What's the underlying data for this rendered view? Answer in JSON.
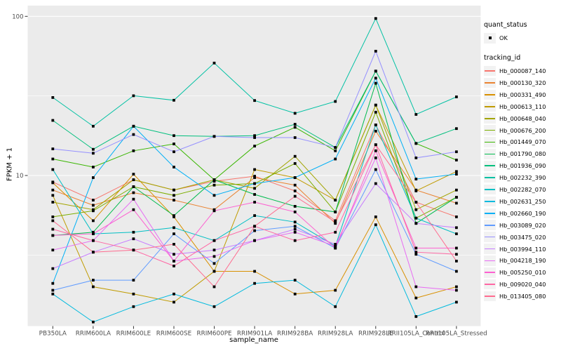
{
  "figure": {
    "y_axis": {
      "label": "FPKM + 1",
      "scale": "log10",
      "tick_labels": [
        "100",
        "10"
      ],
      "tick_values": [
        100,
        10
      ]
    },
    "x_axis": {
      "label": "sample_name"
    },
    "legend": {
      "quant_status": {
        "title": "quant_status",
        "items": [
          {
            "label": "OK",
            "marker": "black-square"
          }
        ]
      },
      "tracking_id": {
        "title": "tracking_id"
      }
    },
    "colors": {
      "page_bg": "#FFFFFF",
      "panel_bg": "#EBEBEB",
      "grid": "#FFFFFF",
      "tick_text": "#4D4D4D",
      "tick_mark": "#333333",
      "point": "#000000",
      "legend_key_bg": "#F2F2F2"
    }
  },
  "chart_data": {
    "type": "line",
    "title": "",
    "xlabel": "sample_name",
    "ylabel": "FPKM + 1",
    "y_scale": "log10",
    "ylim": [
      1.17,
      117
    ],
    "grid": true,
    "legend_position": "right",
    "y_major_gridlines": [
      100,
      10
    ],
    "y_minor_gridlines": [
      31.62,
      3.162
    ],
    "categories": [
      "PB350LA",
      "RRIM600LA",
      "RRIM600LE",
      "RRIM600SE",
      "RRIM600PE",
      "RRIM901LA",
      "RRIM928BA",
      "RRIM928LA",
      "RRIM928LE",
      "RRII105LA_Control",
      "RRII105LA_Stressed"
    ],
    "point_marker": "black-square",
    "series": [
      {
        "name": "Hb_000087_140",
        "color": "#F8766D",
        "values": [
          9.1,
          7.0,
          9.4,
          8.1,
          9.2,
          9.9,
          8.0,
          5.2,
          20.8,
          6.8,
          5.5
        ]
      },
      {
        "name": "Hb_000130_320",
        "color": "#EA8331",
        "values": [
          8.1,
          6.5,
          7.8,
          7.0,
          6.1,
          9.7,
          8.7,
          5.0,
          19.0,
          8.1,
          6.7
        ]
      },
      {
        "name": "Hb_000331_490",
        "color": "#D89000",
        "values": [
          9.0,
          5.2,
          10.2,
          5.5,
          2.5,
          2.5,
          1.8,
          1.9,
          5.5,
          1.7,
          2.0
        ]
      },
      {
        "name": "Hb_000613_110",
        "color": "#C09B00",
        "values": [
          7.5,
          2.0,
          1.8,
          1.6,
          2.5,
          10.9,
          9.7,
          7.0,
          27.7,
          8.0,
          10.6
        ]
      },
      {
        "name": "Hb_000648_040",
        "color": "#A3A500",
        "values": [
          6.8,
          6.1,
          9.4,
          8.1,
          9.4,
          8.3,
          13.2,
          7.0,
          27.7,
          6.1,
          8.1
        ]
      },
      {
        "name": "Hb_000676_200",
        "color": "#7CAE00",
        "values": [
          5.5,
          6.0,
          8.5,
          7.5,
          8.7,
          8.9,
          11.9,
          5.9,
          25.0,
          5.4,
          7.3
        ]
      },
      {
        "name": "Hb_001449_070",
        "color": "#39B600",
        "values": [
          12.7,
          11.3,
          14.3,
          15.8,
          9.4,
          15.3,
          20.1,
          14.3,
          45.3,
          15.9,
          12.5
        ]
      },
      {
        "name": "Hb_001790_080",
        "color": "#00BB4E",
        "values": [
          4.2,
          4.4,
          8.5,
          5.6,
          9.4,
          7.6,
          6.4,
          5.9,
          38.0,
          5.0,
          7.3
        ]
      },
      {
        "name": "Hb_001936_090",
        "color": "#00BF7D",
        "values": [
          22.2,
          14.6,
          20.4,
          17.8,
          17.6,
          17.8,
          21.0,
          15.0,
          45.3,
          15.9,
          19.7
        ]
      },
      {
        "name": "Hb_002232_390",
        "color": "#00C1A3",
        "values": [
          30.9,
          20.4,
          31.7,
          29.7,
          50.9,
          29.6,
          24.6,
          29.2,
          97.0,
          24.2,
          31.2
        ]
      },
      {
        "name": "Hb_002282_070",
        "color": "#00BFC4",
        "values": [
          10.9,
          4.3,
          4.4,
          4.7,
          3.9,
          5.6,
          5.1,
          3.6,
          20.8,
          5.4,
          4.3
        ]
      },
      {
        "name": "Hb_002631_250",
        "color": "#00BADE",
        "values": [
          1.8,
          1.2,
          1.5,
          1.8,
          1.5,
          2.1,
          2.2,
          1.5,
          4.9,
          1.3,
          1.6
        ]
      },
      {
        "name": "Hb_002660_190",
        "color": "#00B0F6",
        "values": [
          2.1,
          9.7,
          20.4,
          11.3,
          7.5,
          8.9,
          9.7,
          12.7,
          40.9,
          9.5,
          10.2
        ]
      },
      {
        "name": "Hb_003089_020",
        "color": "#619CFF",
        "values": [
          1.9,
          2.2,
          2.2,
          4.3,
          2.8,
          4.5,
          4.8,
          3.5,
          10.9,
          3.2,
          2.5
        ]
      },
      {
        "name": "Hb_003475_020",
        "color": "#9590FF",
        "values": [
          14.7,
          13.8,
          18.1,
          14.1,
          17.6,
          17.3,
          17.3,
          15.0,
          60.4,
          12.9,
          14.1
        ]
      },
      {
        "name": "Hb_003994_110",
        "color": "#C77CFF",
        "values": [
          2.6,
          3.3,
          4.0,
          3.2,
          3.4,
          3.9,
          4.6,
          3.7,
          8.9,
          5.0,
          4.7
        ]
      },
      {
        "name": "Hb_004218_190",
        "color": "#E76BF3",
        "values": [
          3.4,
          3.9,
          7.1,
          2.9,
          3.1,
          3.9,
          4.4,
          3.6,
          12.9,
          2.0,
          1.9
        ]
      },
      {
        "name": "Hb_005250_010",
        "color": "#FD61D1",
        "values": [
          4.2,
          4.3,
          6.1,
          2.9,
          6.0,
          6.8,
          5.9,
          3.5,
          14.3,
          3.5,
          3.5
        ]
      },
      {
        "name": "Hb_009020_040",
        "color": "#FF67A4",
        "values": [
          4.6,
          3.9,
          3.4,
          2.7,
          3.9,
          4.8,
          3.9,
          4.4,
          15.6,
          3.3,
          3.2
        ]
      },
      {
        "name": "Hb_013405_080",
        "color": "#FF6C90",
        "values": [
          5.2,
          3.3,
          3.4,
          3.7,
          2.0,
          4.8,
          7.4,
          5.1,
          15.6,
          6.8,
          2.9
        ]
      }
    ]
  }
}
